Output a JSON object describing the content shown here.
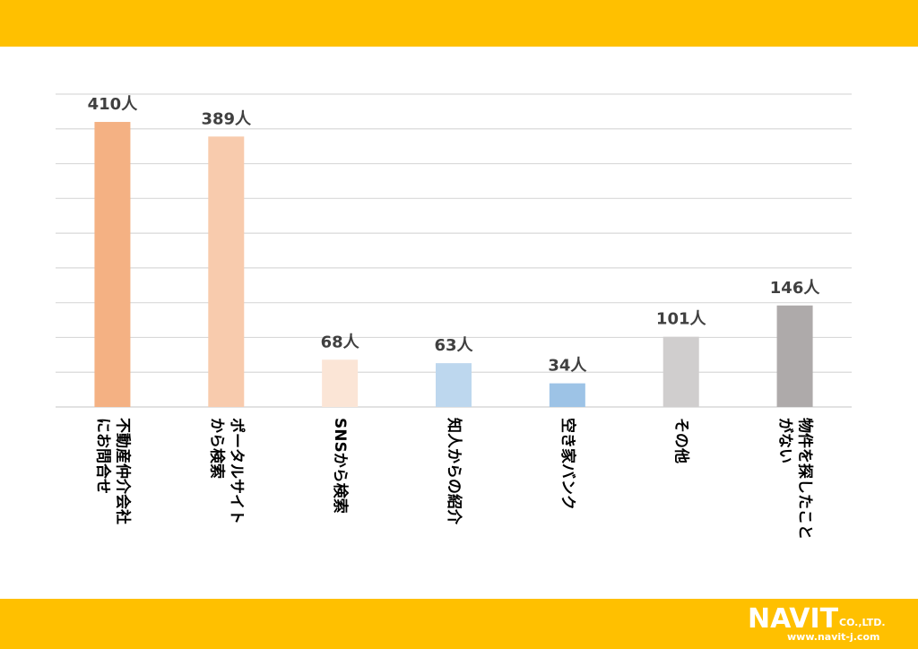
{
  "theme": {
    "band_color": "#FFC000",
    "grid_color": "#D9D9D9",
    "label_color": "#404040",
    "text_color": "#000000"
  },
  "chart_data": {
    "type": "bar",
    "title": "",
    "xlabel": "",
    "ylabel": "",
    "ylim": [
      0,
      450
    ],
    "grid": true,
    "gridlines": 9,
    "categories": [
      [
        "不動産仲介会社",
        "にお問合せ"
      ],
      [
        "ポータルサイト",
        "から検索"
      ],
      [
        "SNSから検索"
      ],
      [
        "知人からの紹介"
      ],
      [
        "空き家バンク"
      ],
      [
        "その他"
      ],
      [
        "物件を探したこと",
        "がない"
      ]
    ],
    "values": [
      410,
      389,
      68,
      63,
      34,
      101,
      146
    ],
    "value_labels": [
      "410人",
      "389人",
      "68人",
      "63人",
      "34人",
      "101人",
      "146人"
    ],
    "colors": [
      "#F4B183",
      "#F8CBAD",
      "#FBE5D6",
      "#BDD7EE",
      "#9DC3E6",
      "#D0CECE",
      "#AEAAAA"
    ]
  },
  "footer": {
    "logo": "NAVIT",
    "company_suffix": "CO.,LTD.",
    "url": "www.navit-j.com"
  }
}
